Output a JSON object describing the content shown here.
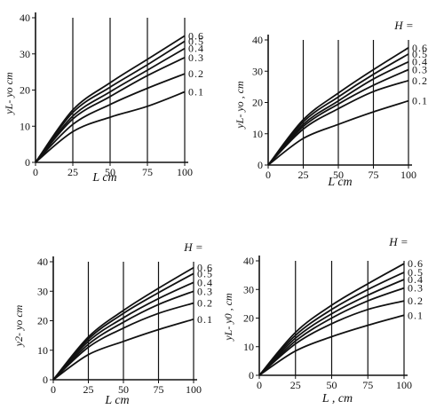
{
  "chart_data": [
    {
      "type": "line",
      "xlabel": "L  cm",
      "ylabel": "yL- yo  cm",
      "legend_title": "",
      "xlim": [
        0,
        100
      ],
      "ylim": [
        0,
        40
      ],
      "xticks": [
        "0",
        "25",
        "50",
        "75",
        "100"
      ],
      "yticks": [
        "0",
        "10",
        "20",
        "30",
        "40"
      ],
      "vertical_lines_at": [
        25,
        50,
        75,
        100
      ],
      "x": [
        0,
        25,
        50,
        75,
        100
      ],
      "series": [
        {
          "name": "0.6",
          "values": [
            0,
            14.5,
            22.0,
            28.5,
            35.0
          ]
        },
        {
          "name": "0.5",
          "values": [
            0,
            13.8,
            20.8,
            27.0,
            33.5
          ]
        },
        {
          "name": "0.4",
          "values": [
            0,
            12.8,
            19.5,
            25.5,
            31.5
          ]
        },
        {
          "name": "0.3",
          "values": [
            0,
            12.0,
            18.2,
            24.0,
            29.0
          ]
        },
        {
          "name": "0.2",
          "values": [
            0,
            10.5,
            16.0,
            20.5,
            24.5
          ]
        },
        {
          "name": "0.1",
          "values": [
            0,
            8.5,
            12.5,
            15.5,
            19.5
          ]
        }
      ]
    },
    {
      "type": "line",
      "xlabel": "L  cm",
      "ylabel": "yL- yo ,  cm",
      "legend_title": "H =",
      "xlim": [
        0,
        100
      ],
      "ylim": [
        0,
        40
      ],
      "xticks": [
        "0",
        "25",
        "50",
        "75",
        "100"
      ],
      "yticks": [
        "0",
        "10",
        "20",
        "30",
        "40"
      ],
      "vertical_lines_at": [
        25,
        50,
        75,
        100
      ],
      "x": [
        0,
        25,
        50,
        75,
        100
      ],
      "series": [
        {
          "name": "0.6",
          "values": [
            0,
            14.5,
            23.0,
            30.5,
            37.5
          ]
        },
        {
          "name": "0.5",
          "values": [
            0,
            13.8,
            21.8,
            29.0,
            35.5
          ]
        },
        {
          "name": "0.4",
          "values": [
            0,
            13.0,
            20.5,
            27.5,
            33.0
          ]
        },
        {
          "name": "0.3",
          "values": [
            0,
            12.3,
            19.5,
            25.5,
            30.5
          ]
        },
        {
          "name": "0.2",
          "values": [
            0,
            11.5,
            18.0,
            23.5,
            27.0
          ]
        },
        {
          "name": "0.1",
          "values": [
            0,
            8.5,
            13.0,
            17.0,
            20.5
          ]
        }
      ]
    },
    {
      "type": "line",
      "xlabel": "L  cm",
      "ylabel": "y2- yo  cm",
      "legend_title": "H =",
      "xlim": [
        0,
        100
      ],
      "ylim": [
        0,
        40
      ],
      "xticks": [
        "0",
        "25",
        "50",
        "75",
        "100"
      ],
      "yticks": [
        "0",
        "10",
        "20",
        "30",
        "40"
      ],
      "vertical_lines_at": [
        25,
        50,
        75,
        100
      ],
      "x": [
        0,
        25,
        50,
        75,
        100
      ],
      "series": [
        {
          "name": "0.6",
          "values": [
            0,
            14.5,
            23.5,
            31.0,
            38.0
          ]
        },
        {
          "name": "0.5",
          "values": [
            0,
            13.8,
            22.5,
            29.5,
            36.0
          ]
        },
        {
          "name": "0.4",
          "values": [
            0,
            13.0,
            21.0,
            27.5,
            33.0
          ]
        },
        {
          "name": "0.3",
          "values": [
            0,
            12.0,
            19.5,
            25.5,
            30.0
          ]
        },
        {
          "name": "0.2",
          "values": [
            0,
            11.0,
            17.5,
            22.5,
            26.0
          ]
        },
        {
          "name": "0.1",
          "values": [
            0,
            8.5,
            13.0,
            17.0,
            20.5
          ]
        }
      ]
    },
    {
      "type": "line",
      "xlabel": "L ,  cm",
      "ylabel": "yL- y0 ,  cm",
      "legend_title": "H =",
      "xlim": [
        0,
        100
      ],
      "ylim": [
        0,
        40
      ],
      "xticks": [
        "0",
        "25",
        "50",
        "75",
        "100"
      ],
      "yticks": [
        "0",
        "10",
        "20",
        "30",
        "40"
      ],
      "vertical_lines_at": [
        25,
        50,
        75,
        100
      ],
      "x": [
        0,
        25,
        50,
        75,
        100
      ],
      "series": [
        {
          "name": "0.6",
          "values": [
            0,
            15.0,
            24.5,
            32.0,
            39.0
          ]
        },
        {
          "name": "0.5",
          "values": [
            0,
            14.0,
            23.0,
            30.0,
            36.0
          ]
        },
        {
          "name": "0.4",
          "values": [
            0,
            13.0,
            21.5,
            28.0,
            33.5
          ]
        },
        {
          "name": "0.3",
          "values": [
            0,
            12.0,
            20.0,
            26.0,
            30.5
          ]
        },
        {
          "name": "0.2",
          "values": [
            0,
            11.0,
            18.0,
            23.0,
            26.0
          ]
        },
        {
          "name": "0.1",
          "values": [
            0,
            8.5,
            13.5,
            17.5,
            21.0
          ]
        }
      ]
    }
  ]
}
